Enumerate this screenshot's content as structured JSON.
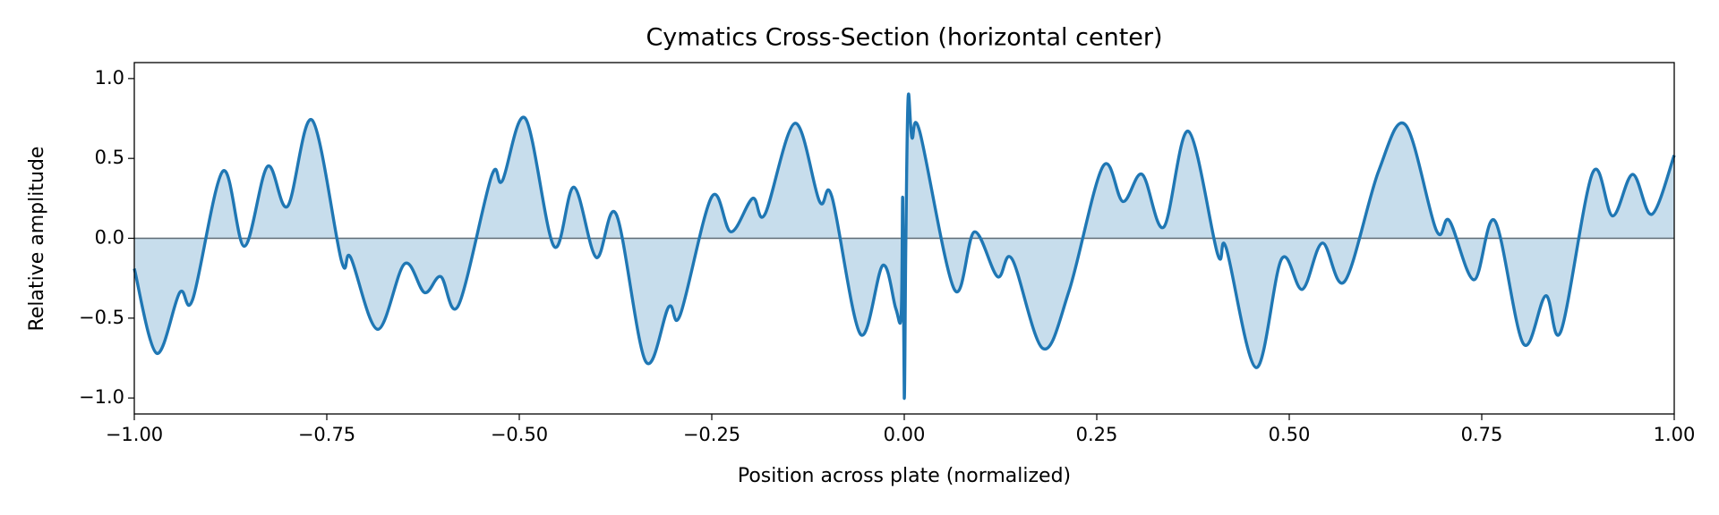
{
  "chart_data": {
    "type": "line",
    "title": "Cymatics Cross-Section (horizontal center)",
    "xlabel": "Position across plate (normalized)",
    "ylabel": "Relative amplitude",
    "x": [
      -1.0,
      -0.971,
      -0.941,
      -0.924,
      -0.885,
      -0.857,
      -0.827,
      -0.801,
      -0.769,
      -0.731,
      -0.719,
      -0.684,
      -0.649,
      -0.623,
      -0.602,
      -0.579,
      -0.536,
      -0.522,
      -0.492,
      -0.455,
      -0.429,
      -0.4,
      -0.374,
      -0.336,
      -0.306,
      -0.291,
      -0.25,
      -0.225,
      -0.197,
      -0.181,
      -0.142,
      -0.11,
      -0.094,
      -0.057,
      -0.028,
      -0.011,
      -0.004,
      -0.002,
      0.0,
      0.002,
      0.005,
      0.01,
      0.02,
      0.065,
      0.091,
      0.121,
      0.14,
      0.18,
      0.214,
      0.258,
      0.284,
      0.309,
      0.337,
      0.369,
      0.407,
      0.418,
      0.457,
      0.49,
      0.517,
      0.543,
      0.572,
      0.616,
      0.651,
      0.691,
      0.708,
      0.74,
      0.767,
      0.804,
      0.833,
      0.853,
      0.894,
      0.92,
      0.946,
      0.971,
      1.0
    ],
    "series": [
      {
        "name": "Relative amplitude",
        "color": "#1f77b4",
        "values": [
          -0.19,
          -0.72,
          -0.34,
          -0.38,
          0.42,
          -0.05,
          0.45,
          0.2,
          0.74,
          -0.14,
          -0.12,
          -0.57,
          -0.16,
          -0.34,
          -0.24,
          -0.42,
          0.39,
          0.36,
          0.75,
          -0.05,
          0.32,
          -0.12,
          0.15,
          -0.77,
          -0.43,
          -0.48,
          0.26,
          0.04,
          0.25,
          0.15,
          0.72,
          0.23,
          0.26,
          -0.6,
          -0.17,
          -0.44,
          -0.48,
          0.25,
          -1.0,
          -0.05,
          0.88,
          0.63,
          0.67,
          -0.32,
          0.04,
          -0.24,
          -0.13,
          -0.69,
          -0.33,
          0.45,
          0.23,
          0.4,
          0.07,
          0.67,
          -0.1,
          -0.06,
          -0.81,
          -0.13,
          -0.32,
          -0.03,
          -0.27,
          0.42,
          0.71,
          0.05,
          0.11,
          -0.26,
          0.11,
          -0.66,
          -0.36,
          -0.58,
          0.41,
          0.14,
          0.4,
          0.15,
          0.52
        ]
      }
    ],
    "fill": true,
    "xlim": [
      -1.0,
      1.0
    ],
    "ylim": [
      -1.1,
      1.1
    ],
    "xticks": [
      {
        "value": -1.0,
        "label": "−1.00"
      },
      {
        "value": -0.75,
        "label": "−0.75"
      },
      {
        "value": -0.5,
        "label": "−0.50"
      },
      {
        "value": -0.25,
        "label": "−0.25"
      },
      {
        "value": 0,
        "label": "0.00"
      },
      {
        "value": 0.25,
        "label": "0.25"
      },
      {
        "value": 0.5,
        "label": "0.50"
      },
      {
        "value": 0.75,
        "label": "0.75"
      },
      {
        "value": 1.0,
        "label": "1.00"
      }
    ],
    "yticks": [
      {
        "value": -1.0,
        "label": "−1.0"
      },
      {
        "value": -0.5,
        "label": "−0.5"
      },
      {
        "value": 0,
        "label": "0.0"
      },
      {
        "value": 0.5,
        "label": "0.5"
      },
      {
        "value": 1.0,
        "label": "1.0"
      }
    ]
  }
}
